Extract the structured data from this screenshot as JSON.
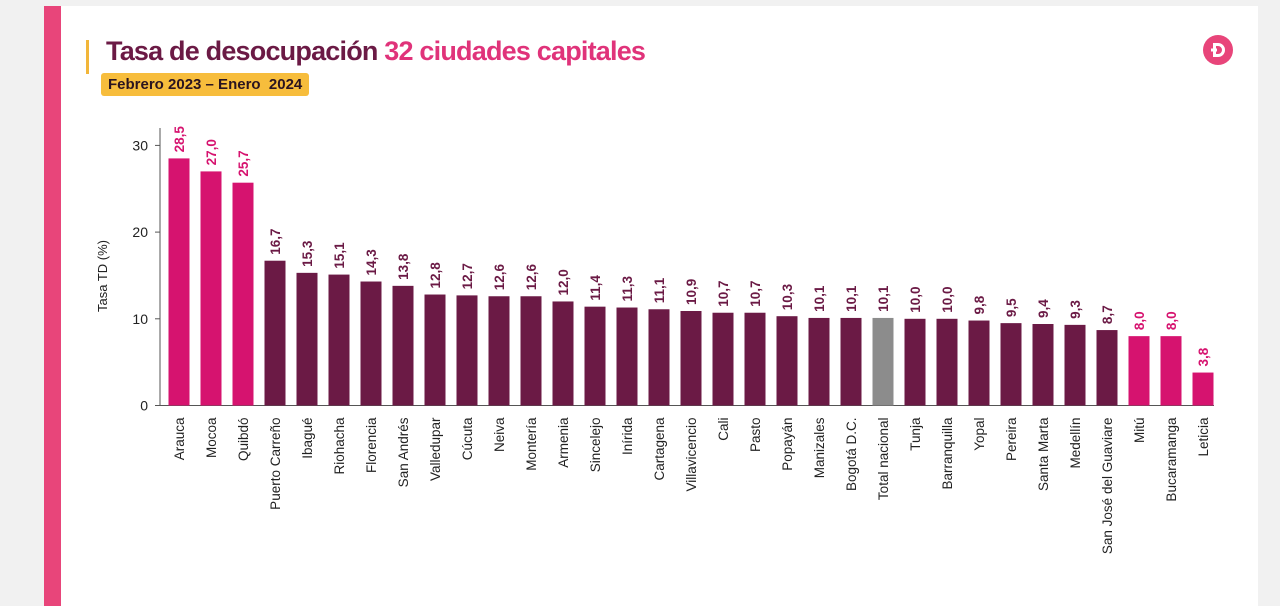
{
  "header": {
    "title_main": "Tasa de desocupación",
    "title_highlight": "32 ciudades capitales",
    "subtitle": "Febrero 2023 – Enero  2024",
    "logo_icon": "dane-logo-icon"
  },
  "colors": {
    "accent": "#e8457a",
    "title_dark": "#6b1a45",
    "title_pink": "#e0337a",
    "subtitle_bg": "#f7bd3c",
    "bar_highlight": "#d6136f",
    "bar_normal": "#6b1a45",
    "bar_national": "#8c8c8c",
    "label_highlight": "#d6136f",
    "label_normal": "#6b1a45"
  },
  "chart_data": {
    "type": "bar",
    "title": "Tasa de desocupación 32 ciudades capitales",
    "subtitle": "Febrero 2023 – Enero  2024",
    "xlabel": "",
    "ylabel": "Tasa TD (%)",
    "ylim": [
      0,
      32
    ],
    "yticks": [
      0,
      10,
      20,
      30
    ],
    "grid": false,
    "categories": [
      "Arauca",
      "Mocoa",
      "Quibdó",
      "Puerto Carreño",
      "Ibagué",
      "Riohacha",
      "Florencia",
      "San Andrés",
      "Valledupar",
      "Cúcuta",
      "Neiva",
      "Montería",
      "Armenia",
      "Sincelejo",
      "Inírida",
      "Cartagena",
      "Villavicencio",
      "Cali",
      "Pasto",
      "Popayán",
      "Manizales",
      "Bogotá D.C.",
      "Total nacional",
      "Tunja",
      "Barranquilla",
      "Yopal",
      "Pereira",
      "Santa Marta",
      "Medellín",
      "San José del Guaviare",
      "Mitú",
      "Bucaramanga",
      "Leticia"
    ],
    "values": [
      28.5,
      27.0,
      25.7,
      16.7,
      15.3,
      15.1,
      14.3,
      13.8,
      12.8,
      12.7,
      12.6,
      12.6,
      12.0,
      11.4,
      11.3,
      11.1,
      10.9,
      10.7,
      10.7,
      10.3,
      10.1,
      10.1,
      10.1,
      10.0,
      10.0,
      9.8,
      9.5,
      9.4,
      9.3,
      8.7,
      8.0,
      8.0,
      3.8
    ],
    "value_labels": [
      "28,5",
      "27,0",
      "25,7",
      "16,7",
      "15,3",
      "15,1",
      "14,3",
      "13,8",
      "12,8",
      "12,7",
      "12,6",
      "12,6",
      "12,0",
      "11,4",
      "11,3",
      "11,1",
      "10,9",
      "10,7",
      "10,7",
      "10,3",
      "10,1",
      "10,1",
      "10,1",
      "10,0",
      "10,0",
      "9,8",
      "9,5",
      "9,4",
      "9,3",
      "8,7",
      "8,0",
      "8,0",
      "3,8"
    ],
    "highlight": [
      "high",
      "high",
      "high",
      "normal",
      "normal",
      "normal",
      "normal",
      "normal",
      "normal",
      "normal",
      "normal",
      "normal",
      "normal",
      "normal",
      "normal",
      "normal",
      "normal",
      "normal",
      "normal",
      "normal",
      "normal",
      "normal",
      "national",
      "normal",
      "normal",
      "normal",
      "normal",
      "normal",
      "normal",
      "normal",
      "high",
      "high",
      "high"
    ]
  }
}
